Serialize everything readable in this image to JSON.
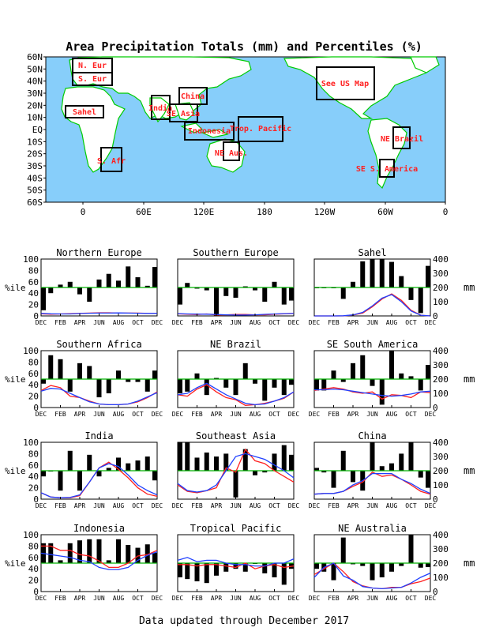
{
  "page": {
    "title": "Area Precipitation Totals (mm) and Percentiles (%)",
    "footer": "Data updated through December 2017",
    "colors": {
      "ocean": "#87cefa",
      "land": "#ffffff",
      "coast": "#00cc00",
      "region_label": "#ff2020",
      "box": "#000000",
      "bar": "#000000",
      "ref_line": "#00b000",
      "obs_line": "#ff2020",
      "clim_line": "#2040ff"
    }
  },
  "map": {
    "lat_labels": [
      "60N",
      "50N",
      "40N",
      "30N",
      "20N",
      "10N",
      "EQ",
      "10S",
      "20S",
      "30S",
      "40S",
      "50S",
      "60S"
    ],
    "lon_labels": [
      "0",
      "60E",
      "120E",
      "180",
      "120W",
      "60W",
      "0"
    ],
    "regions": [
      {
        "name": "N. Eur",
        "label": "N. Eur"
      },
      {
        "name": "S. Eur",
        "label": "S. Eur"
      },
      {
        "name": "Sahel",
        "label": "Sahel"
      },
      {
        "name": "India",
        "label": "India"
      },
      {
        "name": "China",
        "label": "China"
      },
      {
        "name": "SE Asia",
        "label": "SE Asia"
      },
      {
        "name": "Indonesia",
        "label": "Indonesia"
      },
      {
        "name": "Trop. Pacific",
        "label": "Trop. Pacific"
      },
      {
        "name": "NE Aus.",
        "label": "NE Aus."
      },
      {
        "name": "S. Afr",
        "label": "S. Afr"
      },
      {
        "name": "See US Map",
        "label": "See US Map"
      },
      {
        "name": "NE Brazil",
        "label": "NE Brazil"
      },
      {
        "name": "SE S. America",
        "label": "SE S. America"
      }
    ]
  },
  "panels_axes": {
    "x_ticks": [
      "DEC",
      "FEB",
      "APR",
      "JUN",
      "AUG",
      "OCT",
      "DEC"
    ],
    "left_ticks": [
      "0",
      "20",
      "40",
      "60",
      "80",
      "100"
    ],
    "right_ticks": [
      "0",
      "100",
      "200",
      "300",
      "400"
    ],
    "left_label": "%ile",
    "right_label": "mm",
    "percentile_range": [
      0,
      100
    ],
    "mm_range": [
      0,
      400
    ],
    "reference_percentile": 50
  },
  "chart_data": [
    {
      "type": "bar",
      "title": "Northern Europe",
      "percentiles": [
        10,
        40,
        55,
        60,
        38,
        25,
        64,
        74,
        62,
        87,
        68,
        53,
        86
      ],
      "series": [
        {
          "values": [
            15,
            12,
            14,
            16,
            18,
            20,
            22,
            22,
            20,
            20,
            20,
            18,
            18
          ]
        },
        {
          "values": [
            18,
            15,
            14,
            14,
            17,
            19,
            20,
            20,
            21,
            20,
            19,
            18,
            18
          ]
        }
      ]
    },
    {
      "type": "bar",
      "title": "Southern Europe",
      "percentiles": [
        20,
        58,
        48,
        45,
        0,
        35,
        32,
        52,
        45,
        25,
        60,
        20,
        27
      ],
      "series": [
        {
          "values": [
            15,
            12,
            10,
            14,
            6,
            8,
            10,
            10,
            8,
            8,
            12,
            15,
            18
          ]
        },
        {
          "values": [
            16,
            14,
            13,
            12,
            10,
            8,
            6,
            6,
            8,
            11,
            14,
            16,
            17
          ]
        }
      ]
    },
    {
      "type": "bar",
      "title": "Sahel",
      "percentiles": [
        50,
        50,
        50,
        30,
        60,
        96,
        100,
        100,
        95,
        70,
        28,
        5,
        88
      ],
      "series": [
        {
          "values": [
            0,
            0,
            0,
            0,
            6,
            20,
            64,
            119,
            155,
            110,
            40,
            5,
            0
          ]
        },
        {
          "values": [
            0,
            0,
            0,
            1,
            7,
            25,
            70,
            125,
            150,
            100,
            35,
            5,
            0
          ]
        }
      ]
    },
    {
      "type": "bar",
      "title": "Southern Africa",
      "percentiles": [
        42,
        92,
        85,
        28,
        78,
        73,
        18,
        25,
        65,
        45,
        45,
        28,
        65
      ],
      "series": [
        {
          "values": [
            120,
            155,
            140,
            80,
            70,
            45,
            25,
            20,
            20,
            25,
            40,
            70,
            110
          ]
        },
        {
          "values": [
            115,
            135,
            130,
            100,
            70,
            40,
            25,
            20,
            20,
            25,
            45,
            75,
            105
          ]
        }
      ]
    },
    {
      "type": "bar",
      "title": "NE Brazil",
      "percentiles": [
        25,
        28,
        60,
        22,
        52,
        35,
        22,
        78,
        42,
        12,
        35,
        22,
        40
      ],
      "series": [
        {
          "values": [
            90,
            80,
            130,
            160,
            110,
            70,
            55,
            15,
            20,
            30,
            45,
            65,
            110
          ]
        },
        {
          "values": [
            90,
            100,
            140,
            170,
            130,
            90,
            60,
            30,
            20,
            25,
            45,
            70,
            110
          ]
        }
      ]
    },
    {
      "type": "bar",
      "title": "SE South America",
      "percentiles": [
        30,
        30,
        65,
        45,
        78,
        92,
        38,
        5,
        100,
        60,
        55,
        30,
        75
      ],
      "series": [
        {
          "values": [
            120,
            130,
            140,
            130,
            110,
            100,
            110,
            60,
            90,
            85,
            70,
            110,
            105
          ]
        },
        {
          "values": [
            125,
            125,
            130,
            125,
            115,
            105,
            95,
            85,
            80,
            85,
            95,
            110,
            115
          ]
        }
      ]
    },
    {
      "type": "bar",
      "title": "India",
      "percentiles": [
        40,
        50,
        15,
        85,
        15,
        78,
        40,
        55,
        73,
        63,
        68,
        75,
        33
      ],
      "series": [
        {
          "values": [
            45,
            15,
            10,
            10,
            25,
            120,
            220,
            260,
            210,
            150,
            80,
            35,
            20
          ]
        },
        {
          "values": [
            45,
            15,
            10,
            12,
            30,
            120,
            220,
            250,
            230,
            170,
            100,
            60,
            30
          ]
        }
      ]
    },
    {
      "type": "bar",
      "title": "Southeast Asia",
      "percentiles": [
        100,
        100,
        73,
        82,
        75,
        80,
        3,
        88,
        42,
        47,
        80,
        95,
        78
      ],
      "series": [
        {
          "values": [
            100,
            55,
            45,
            60,
            80,
            220,
            190,
            350,
            270,
            250,
            200,
            160,
            120
          ]
        },
        {
          "values": [
            110,
            60,
            50,
            60,
            100,
            200,
            300,
            320,
            300,
            280,
            240,
            200,
            150
          ]
        }
      ]
    },
    {
      "type": "bar",
      "title": "China",
      "percentiles": [
        55,
        47,
        20,
        85,
        30,
        15,
        100,
        58,
        63,
        80,
        100,
        38,
        20
      ],
      "series": [
        {
          "values": [
            35,
            40,
            40,
            55,
            90,
            120,
            190,
            160,
            170,
            140,
            100,
            55,
            35
          ]
        },
        {
          "values": [
            35,
            40,
            40,
            55,
            100,
            130,
            180,
            180,
            180,
            140,
            110,
            70,
            40
          ]
        }
      ]
    },
    {
      "type": "bar",
      "title": "Indonesia",
      "percentiles": [
        85,
        85,
        55,
        85,
        90,
        92,
        92,
        55,
        92,
        82,
        77,
        83,
        68
      ],
      "series": [
        {
          "values": [
            320,
            320,
            290,
            290,
            260,
            250,
            215,
            170,
            170,
            200,
            250,
            260,
            290
          ]
        },
        {
          "values": [
            270,
            260,
            250,
            240,
            220,
            210,
            170,
            155,
            155,
            170,
            220,
            255,
            280
          ]
        }
      ]
    },
    {
      "type": "bar",
      "title": "Tropical Pacific",
      "percentiles": [
        25,
        22,
        18,
        15,
        28,
        35,
        40,
        35,
        50,
        32,
        25,
        12,
        40
      ],
      "series": [
        {
          "values": [
            190,
            190,
            180,
            190,
            190,
            180,
            170,
            200,
            160,
            180,
            190,
            170,
            180
          ]
        },
        {
          "values": [
            220,
            240,
            210,
            220,
            220,
            200,
            190,
            190,
            180,
            180,
            200,
            200,
            230
          ]
        }
      ]
    },
    {
      "type": "bar",
      "title": "NE Australia",
      "percentiles": [
        40,
        35,
        20,
        95,
        48,
        45,
        20,
        25,
        35,
        45,
        100,
        42,
        43
      ],
      "series": [
        {
          "values": [
            120,
            160,
            200,
            140,
            70,
            40,
            25,
            20,
            30,
            30,
            55,
            70,
            95
          ]
        },
        {
          "values": [
            100,
            170,
            200,
            110,
            80,
            35,
            25,
            20,
            25,
            30,
            60,
            100,
            130
          ]
        }
      ]
    }
  ]
}
